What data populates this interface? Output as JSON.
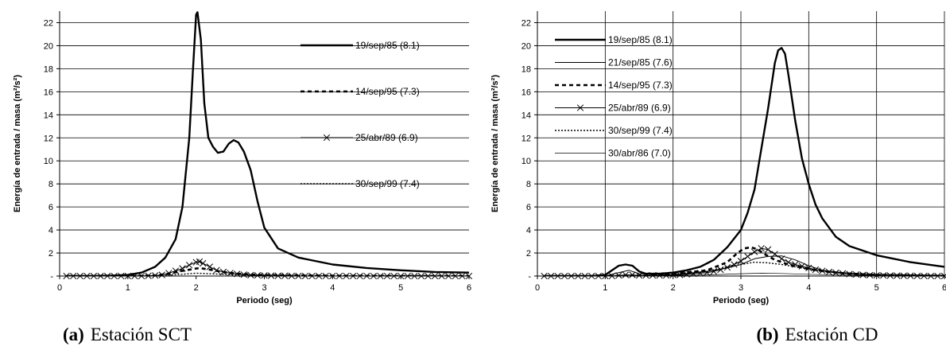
{
  "chart_data": [
    {
      "type": "line",
      "caption_tag": "(a)",
      "caption_text": "Estación SCT",
      "xlabel": "Periodo (seg)",
      "ylabel": "Energía de entrada / masa (m²/s²)",
      "xlim": [
        0,
        6
      ],
      "ylim": [
        0,
        23
      ],
      "xticks": [
        "0",
        "1",
        "2",
        "3",
        "4",
        "5",
        "6"
      ],
      "yticks": [
        "-",
        "2",
        "4",
        "6",
        "8",
        "10",
        "12",
        "14",
        "16",
        "18",
        "20",
        "22"
      ],
      "grid": "horizontal",
      "legend_position": "right",
      "series": [
        {
          "name": "19/sep/85 (8.1)",
          "style": "solid-thick",
          "marker": "none",
          "x": [
            0.1,
            0.5,
            0.8,
            1.0,
            1.2,
            1.4,
            1.55,
            1.7,
            1.8,
            1.9,
            1.95,
            2.0,
            2.02,
            2.07,
            2.12,
            2.18,
            2.25,
            2.32,
            2.4,
            2.48,
            2.55,
            2.62,
            2.7,
            2.8,
            2.9,
            3.0,
            3.2,
            3.5,
            4.0,
            4.5,
            5.0,
            5.5,
            6.0
          ],
          "y": [
            0,
            0,
            0.05,
            0.1,
            0.3,
            0.8,
            1.6,
            3.2,
            6.0,
            12.0,
            17.5,
            22.7,
            22.9,
            20.5,
            15.0,
            12.0,
            11.2,
            10.7,
            10.8,
            11.5,
            11.8,
            11.6,
            10.8,
            9.2,
            6.5,
            4.2,
            2.4,
            1.6,
            1.0,
            0.7,
            0.5,
            0.35,
            0.3
          ]
        },
        {
          "name": "14/sep/95 (7.3)",
          "style": "dashed-thick",
          "marker": "none",
          "x": [
            0.1,
            1.0,
            1.4,
            1.6,
            1.8,
            1.95,
            2.05,
            2.2,
            2.4,
            2.6,
            3.0,
            4.0,
            5.0,
            6.0
          ],
          "y": [
            0,
            0,
            0.05,
            0.2,
            0.45,
            0.6,
            0.7,
            0.55,
            0.35,
            0.2,
            0.08,
            0.03,
            0.01,
            0
          ],
          "bind_keep": "14/sep/95 (7.3)"
        },
        {
          "name": "25/abr/89 (6.9)",
          "style": "solid-thin",
          "marker": "x",
          "x": [
            0.1,
            0.2,
            0.3,
            0.4,
            0.5,
            0.6,
            0.7,
            0.8,
            0.9,
            1.0,
            1.1,
            1.2,
            1.3,
            1.4,
            1.5,
            1.6,
            1.7,
            1.8,
            1.9,
            2.0,
            2.05,
            2.1,
            2.2,
            2.3,
            2.4,
            2.5,
            2.6,
            2.7,
            2.8,
            2.9,
            3.0,
            3.1,
            3.2,
            3.3,
            3.4,
            3.5,
            3.6,
            3.7,
            3.8,
            3.9,
            4.0,
            4.1,
            4.2,
            4.3,
            4.4,
            4.5,
            4.6,
            4.7,
            4.8,
            4.9,
            5.0,
            5.1,
            5.2,
            5.3,
            5.4,
            5.5,
            5.6,
            5.7,
            5.8,
            5.9,
            6.0
          ],
          "y": [
            0,
            0,
            0,
            0,
            0,
            0,
            0,
            0,
            0,
            0,
            0,
            0,
            0.02,
            0.05,
            0.1,
            0.25,
            0.45,
            0.65,
            0.95,
            1.2,
            1.25,
            1.1,
            0.8,
            0.5,
            0.35,
            0.25,
            0.18,
            0.12,
            0.08,
            0.06,
            0.05,
            0.03,
            0.02,
            0.02,
            0.01,
            0.01,
            0,
            0,
            0,
            0,
            0,
            0,
            0,
            0,
            0,
            0,
            0,
            0,
            0,
            0,
            0,
            0,
            0,
            0,
            0,
            0,
            0,
            0,
            0,
            0,
            0
          ]
        },
        {
          "name": "30/sep/99 (7.4)",
          "style": "dotted",
          "marker": "none",
          "x": [
            0.1,
            1.0,
            1.5,
            1.8,
            2.0,
            2.2,
            2.5,
            3.0,
            4.0,
            6.0
          ],
          "y": [
            0,
            0,
            0.05,
            0.15,
            0.25,
            0.2,
            0.12,
            0.05,
            0.02,
            0
          ]
        }
      ]
    },
    {
      "type": "line",
      "caption_tag": "(b)",
      "caption_text": "Estación CD",
      "xlabel": "Periodo (seg)",
      "ylabel": "Energía de entrada / masa (m²/s²)",
      "xlim": [
        0,
        6
      ],
      "ylim": [
        0,
        23
      ],
      "xticks": [
        "0",
        "1",
        "2",
        "3",
        "4",
        "5",
        "6"
      ],
      "yticks": [
        "-",
        "2",
        "4",
        "6",
        "8",
        "10",
        "12",
        "14",
        "16",
        "18",
        "20",
        "22"
      ],
      "grid": "both",
      "legend_position": "top-left",
      "series": [
        {
          "name": "19/sep/85 (8.1)",
          "style": "solid-thick",
          "marker": "none",
          "x": [
            0.1,
            0.8,
            1.0,
            1.1,
            1.2,
            1.3,
            1.4,
            1.5,
            1.6,
            1.8,
            2.0,
            2.2,
            2.4,
            2.6,
            2.8,
            3.0,
            3.1,
            3.2,
            3.3,
            3.4,
            3.5,
            3.55,
            3.6,
            3.65,
            3.7,
            3.8,
            3.9,
            4.0,
            4.1,
            4.2,
            4.4,
            4.6,
            5.0,
            5.5,
            6.0
          ],
          "y": [
            0,
            0,
            0.1,
            0.5,
            0.9,
            1.0,
            0.9,
            0.4,
            0.2,
            0.2,
            0.3,
            0.5,
            0.8,
            1.4,
            2.5,
            4.0,
            5.5,
            7.5,
            11.0,
            14.5,
            18.5,
            19.6,
            19.8,
            19.3,
            17.5,
            13.5,
            10.2,
            8.0,
            6.2,
            5.0,
            3.4,
            2.6,
            1.8,
            1.2,
            0.8
          ]
        },
        {
          "name": "21/sep/85 (7.6)",
          "style": "solid-thin",
          "marker": "none",
          "x": [
            0.1,
            1.0,
            1.2,
            1.35,
            1.5,
            2.0,
            2.5,
            2.8,
            3.0,
            3.2,
            3.4,
            3.6,
            3.8,
            4.0,
            4.2,
            4.5,
            5.0,
            6.0
          ],
          "y": [
            0,
            0,
            0.3,
            0.5,
            0.2,
            0.1,
            0.4,
            0.7,
            1.0,
            1.5,
            1.7,
            1.75,
            1.4,
            0.9,
            0.5,
            0.3,
            0.15,
            0.05
          ]
        },
        {
          "name": "14/sep/95 (7.3)",
          "style": "dashed-thick",
          "marker": "none",
          "x": [
            0.1,
            1.0,
            1.5,
            2.0,
            2.5,
            2.8,
            2.95,
            3.05,
            3.15,
            3.25,
            3.35,
            3.5,
            3.7,
            4.0,
            4.3,
            4.6,
            5.0,
            6.0
          ],
          "y": [
            0,
            0,
            0.05,
            0.2,
            0.5,
            1.2,
            2.0,
            2.4,
            2.5,
            2.3,
            1.9,
            1.4,
            1.0,
            0.6,
            0.35,
            0.2,
            0.1,
            0.02
          ]
        },
        {
          "name": "25/abr/89 (6.9)",
          "style": "solid-thin",
          "marker": "x",
          "x": [
            0.1,
            0.2,
            0.3,
            0.4,
            0.5,
            0.6,
            0.7,
            0.8,
            0.9,
            1.0,
            1.1,
            1.2,
            1.3,
            1.4,
            1.5,
            1.6,
            1.7,
            1.8,
            1.9,
            2.0,
            2.1,
            2.2,
            2.3,
            2.4,
            2.5,
            2.6,
            2.7,
            2.8,
            2.9,
            3.0,
            3.1,
            3.2,
            3.3,
            3.4,
            3.5,
            3.6,
            3.7,
            3.8,
            3.9,
            4.0,
            4.1,
            4.2,
            4.3,
            4.4,
            4.5,
            4.6,
            4.7,
            4.8,
            4.9,
            5.0,
            5.1,
            5.2,
            5.3,
            5.4,
            5.5,
            5.6,
            5.7,
            5.8,
            5.9,
            6.0
          ],
          "y": [
            0,
            0,
            0,
            0,
            0,
            0,
            0,
            0,
            0,
            0,
            0,
            0.05,
            0.1,
            0.1,
            0.05,
            0.05,
            0.05,
            0.05,
            0.05,
            0.1,
            0.1,
            0.15,
            0.2,
            0.25,
            0.3,
            0.4,
            0.55,
            0.75,
            1.0,
            1.3,
            1.7,
            2.1,
            2.4,
            2.3,
            1.9,
            1.5,
            1.2,
            1.0,
            0.85,
            0.7,
            0.55,
            0.45,
            0.35,
            0.28,
            0.22,
            0.17,
            0.13,
            0.1,
            0.08,
            0.06,
            0.05,
            0.04,
            0.03,
            0.02,
            0.02,
            0.01,
            0.01,
            0,
            0,
            0
          ]
        },
        {
          "name": "30/sep/99 (7.4)",
          "style": "dotted",
          "marker": "none",
          "x": [
            0.1,
            1.0,
            1.5,
            2.0,
            2.5,
            2.8,
            3.0,
            3.2,
            3.4,
            3.6,
            3.8,
            4.0,
            4.3,
            4.6,
            5.0,
            6.0
          ],
          "y": [
            0,
            0,
            0.05,
            0.15,
            0.4,
            0.8,
            1.0,
            1.2,
            1.15,
            1.0,
            0.8,
            0.6,
            0.35,
            0.2,
            0.1,
            0.02
          ]
        },
        {
          "name": "30/abr/86 (7.0)",
          "style": "solid-hair",
          "marker": "none",
          "x": [
            0.1,
            1.0,
            1.5,
            2.0,
            2.5,
            3.0,
            3.3,
            3.6,
            4.0,
            4.5,
            5.0,
            6.0
          ],
          "y": [
            0,
            0,
            0.02,
            0.05,
            0.1,
            0.2,
            0.25,
            0.22,
            0.15,
            0.08,
            0.04,
            0.01
          ]
        }
      ]
    }
  ]
}
